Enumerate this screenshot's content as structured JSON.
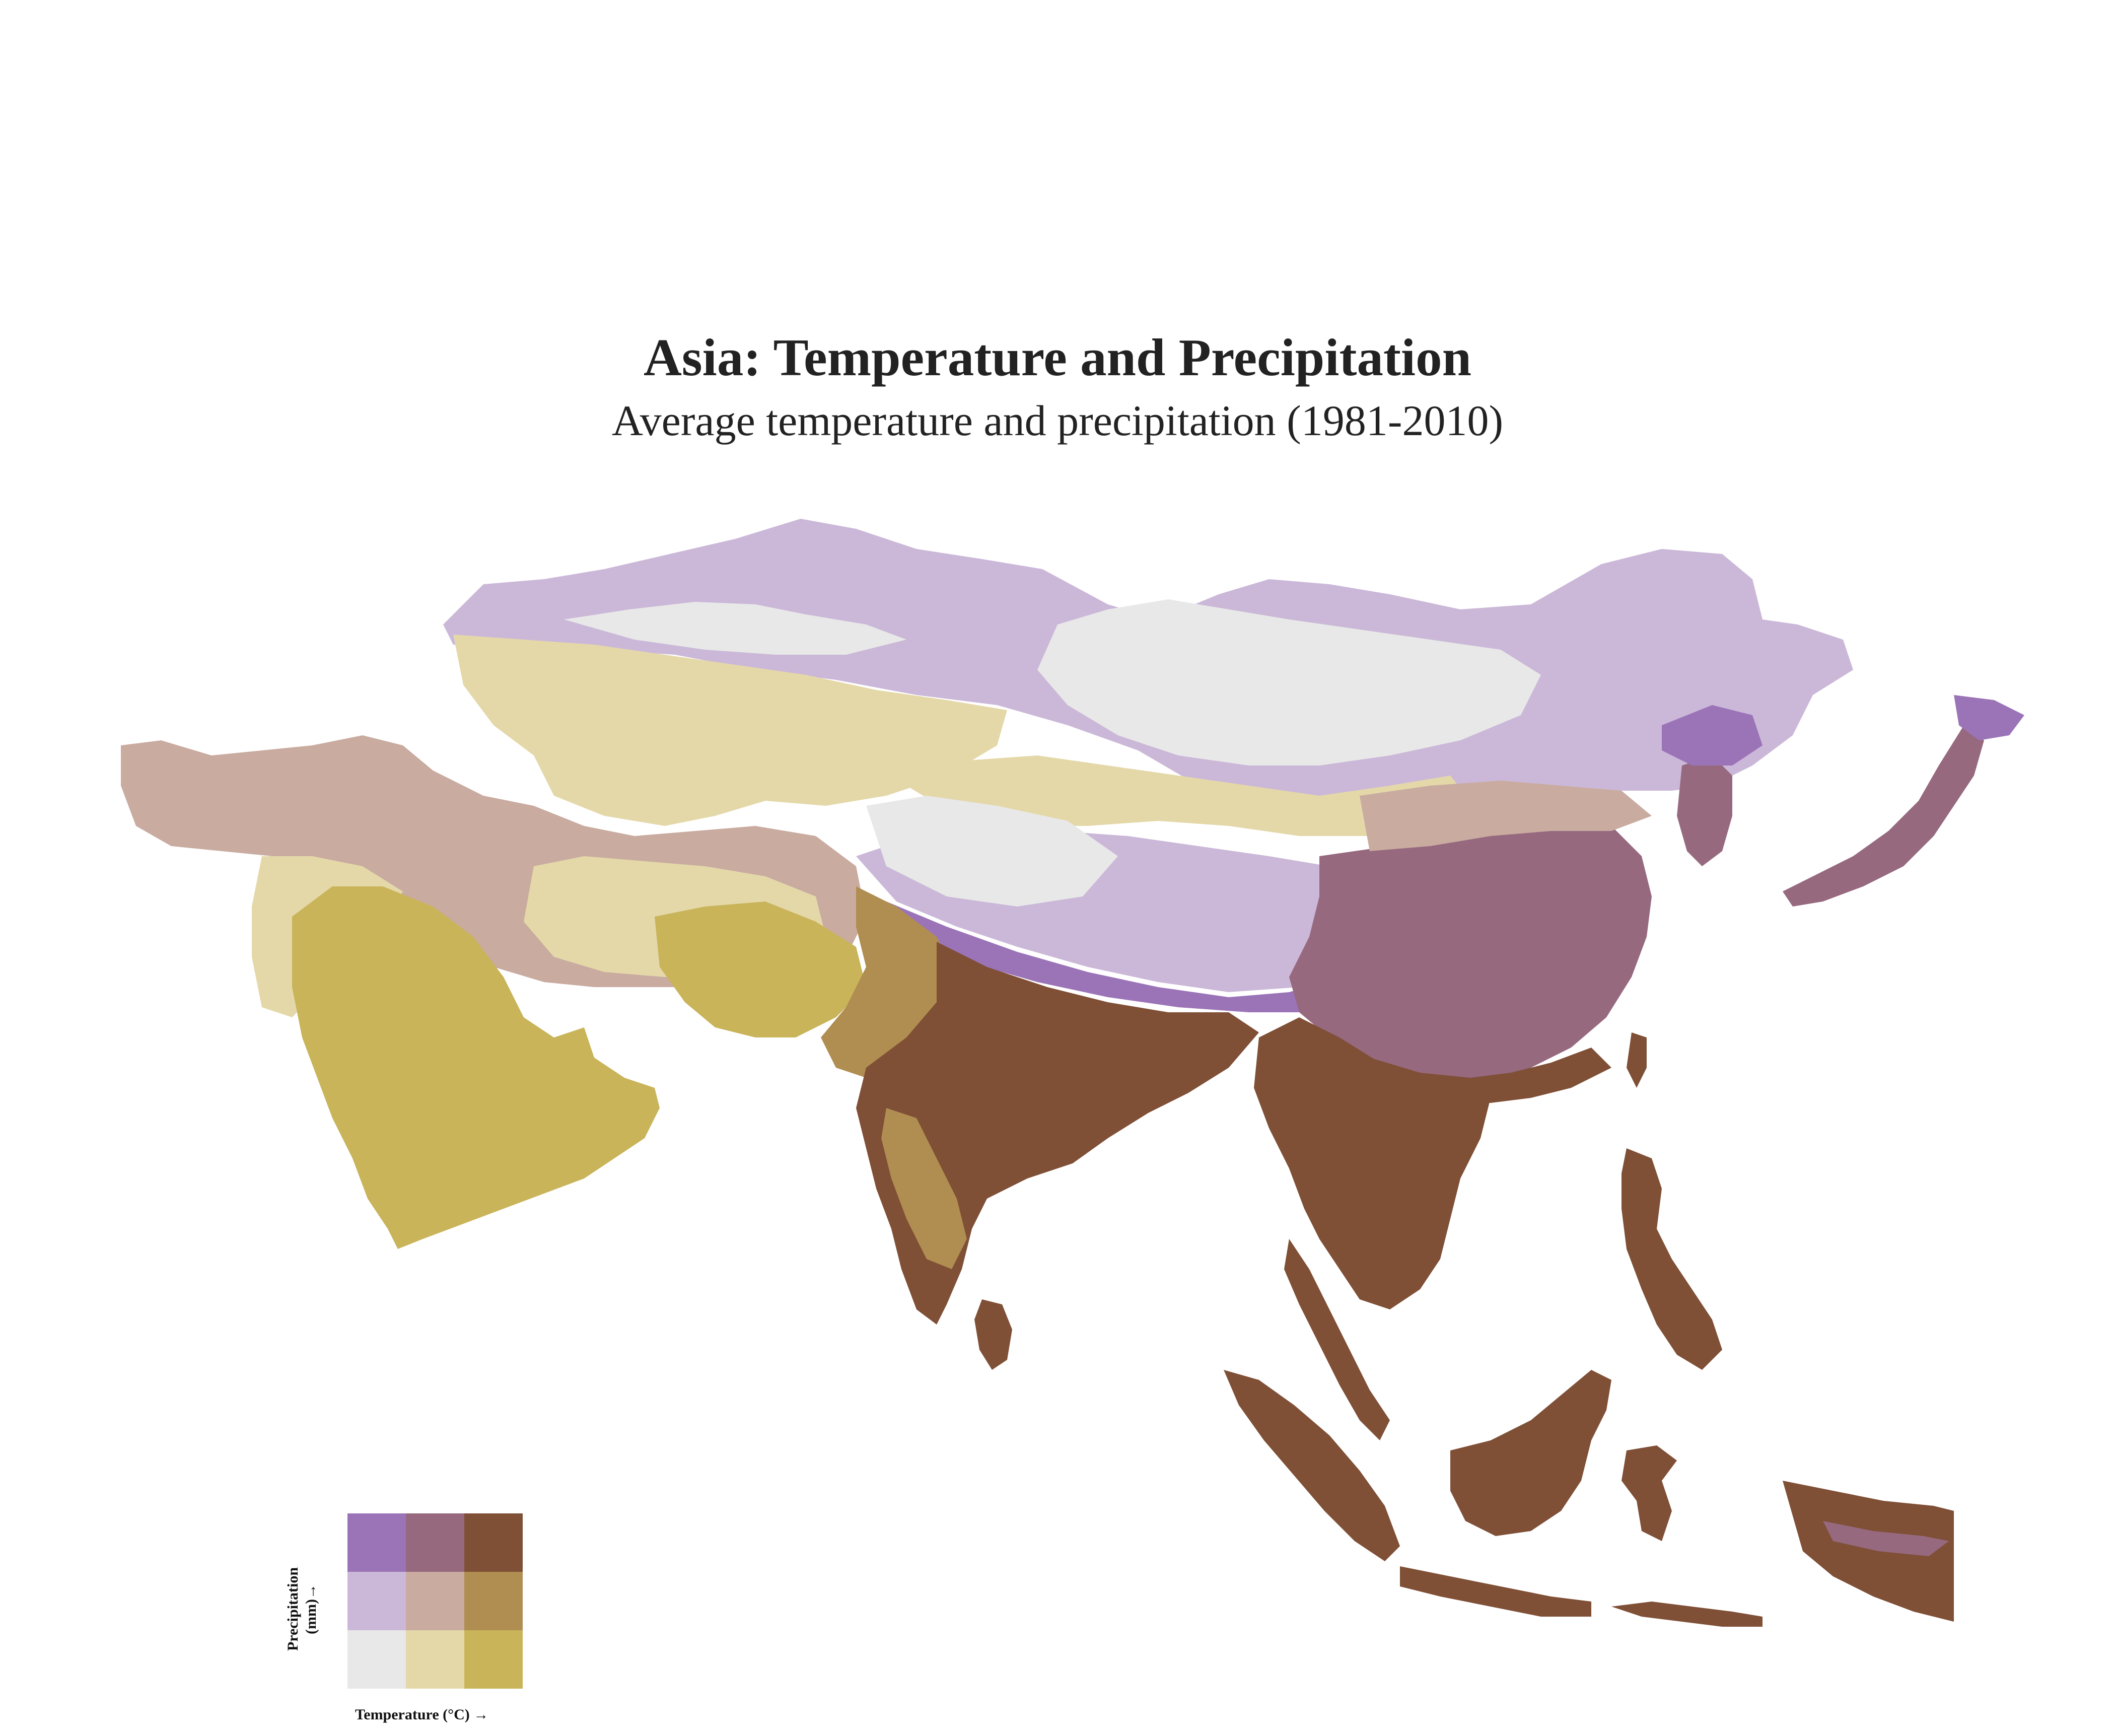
{
  "title": "Asia: Temperature and Precipitation",
  "subtitle": "Average temperature and precipitation (1981-2010)",
  "legend": {
    "y_label_line1": "Precipitation",
    "y_label_line2": "(mm)→",
    "x_label": "Temperature (°C) →",
    "grid": [
      [
        "#9b74b8",
        "#96697f",
        "#7f4f36"
      ],
      [
        "#cbb8d8",
        "#c9aba0",
        "#b08d50"
      ],
      [
        "#e8e8e8",
        "#e4d8a9",
        "#c9b45a"
      ]
    ]
  },
  "colors": {
    "cold_dry": "#e8e8e8",
    "cold_mid": "#cbb8d8",
    "cold_wet": "#9b74b8",
    "mild_dry": "#e4d8a9",
    "mild_mid": "#c9aba0",
    "mild_wet": "#96697f",
    "hot_dry": "#c9b45a",
    "hot_mid": "#b08d50",
    "hot_wet": "#7f4f36"
  }
}
